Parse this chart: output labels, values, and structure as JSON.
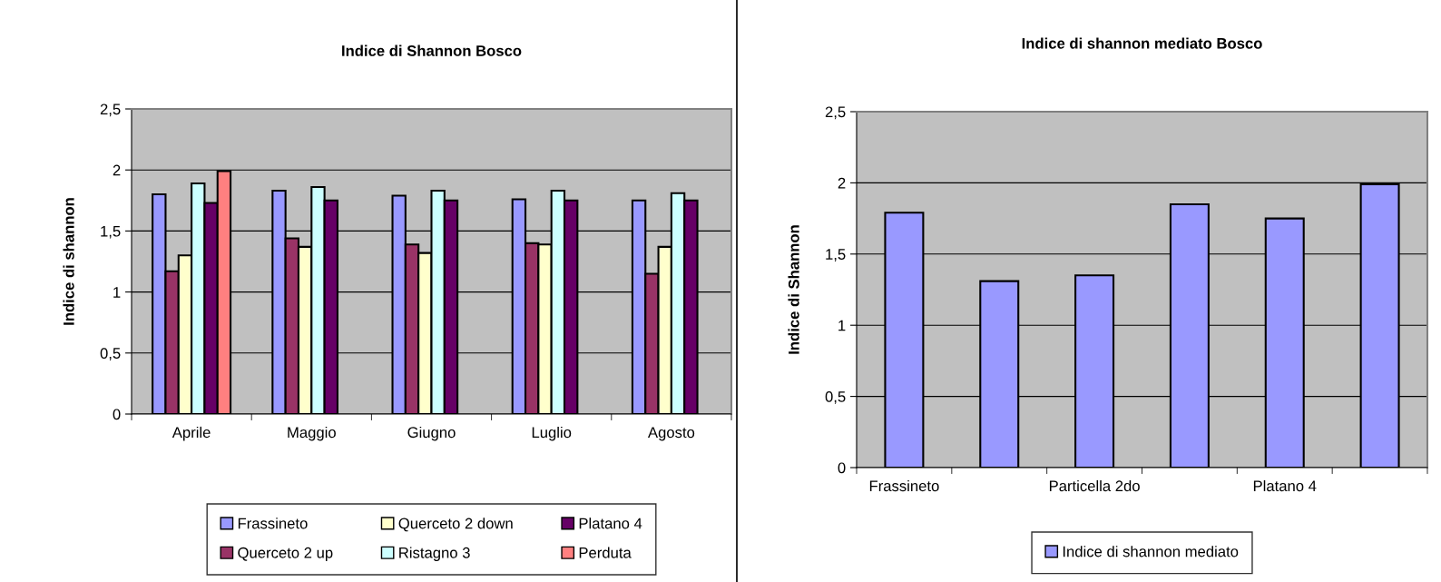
{
  "chart_data": [
    {
      "type": "bar",
      "title": "Indice di Shannon Bosco",
      "ylabel": "Indice di shannon",
      "categories": [
        "Aprile",
        "Maggio",
        "Giugno",
        "Luglio",
        "Agosto"
      ],
      "ylim": [
        0,
        2.5
      ],
      "yticks": [
        0,
        {
          "value": 0.5,
          "label": "0,5"
        },
        1,
        {
          "value": 1.5,
          "label": "1,5"
        },
        2,
        {
          "value": 2.5,
          "label": "2,5"
        }
      ],
      "grid": "y",
      "legend": "bottom",
      "series": [
        {
          "name": "Frassineto",
          "color": "#9999ff",
          "values": [
            1.8,
            1.83,
            1.79,
            1.76,
            1.75
          ]
        },
        {
          "name": "Querceto 2 up",
          "color": "#993366",
          "values": [
            1.17,
            1.44,
            1.39,
            1.4,
            1.15
          ]
        },
        {
          "name": "Querceto 2 down",
          "color": "#ffffcc",
          "values": [
            1.3,
            1.37,
            1.32,
            1.39,
            1.37
          ]
        },
        {
          "name": "Ristagno 3",
          "color": "#ccffff",
          "values": [
            1.89,
            1.86,
            1.83,
            1.83,
            1.81
          ]
        },
        {
          "name": "Platano 4",
          "color": "#660066",
          "values": [
            1.73,
            1.75,
            1.75,
            1.75,
            1.75
          ]
        },
        {
          "name": "Perduta",
          "color": "#ff8080",
          "values": [
            1.99,
            null,
            null,
            null,
            null
          ]
        }
      ]
    },
    {
      "type": "bar",
      "title": "Indice di shannon mediato Bosco",
      "ylabel": "Indice di Shannon",
      "categories": [
        "Frassineto",
        null,
        "Particella 2do",
        null,
        "Platano 4",
        null
      ],
      "ylim": [
        0,
        2.5
      ],
      "yticks": [
        0,
        {
          "value": 0.5,
          "label": "0,5"
        },
        1,
        {
          "value": 1.5,
          "label": "1,5"
        },
        2,
        {
          "value": 2.5,
          "label": "2,5"
        }
      ],
      "grid": "y",
      "legend": "bottom",
      "series": [
        {
          "name": "Indice di shannon mediato",
          "color": "#9999ff",
          "values": [
            1.79,
            1.31,
            1.35,
            1.85,
            1.75,
            1.99
          ]
        }
      ]
    }
  ]
}
